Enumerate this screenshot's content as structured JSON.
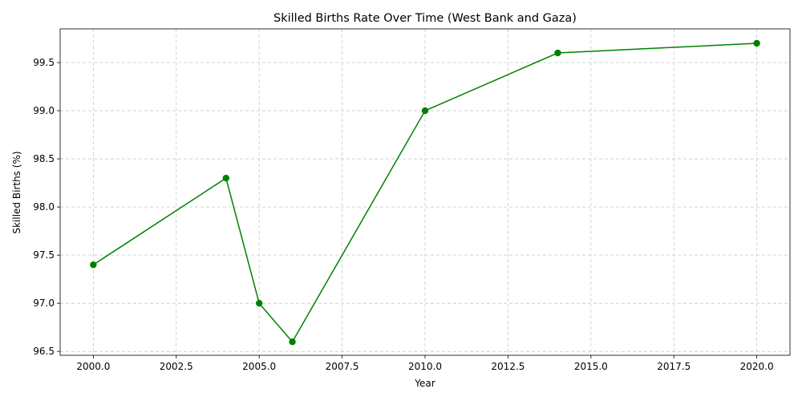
{
  "chart_data": {
    "type": "line",
    "title": "Skilled Births Rate Over Time (West Bank and Gaza)",
    "xlabel": "Year",
    "ylabel": "Skilled Births (%)",
    "xlim": [
      1999.0,
      2021.0
    ],
    "ylim": [
      96.46,
      99.85
    ],
    "xticks": [
      2000.0,
      2002.5,
      2005.0,
      2007.5,
      2010.0,
      2012.5,
      2015.0,
      2017.5,
      2020.0
    ],
    "xtick_labels": [
      "2000.0",
      "2002.5",
      "2005.0",
      "2007.5",
      "2010.0",
      "2012.5",
      "2015.0",
      "2017.5",
      "2020.0"
    ],
    "yticks": [
      96.5,
      97.0,
      97.5,
      98.0,
      98.5,
      99.0,
      99.5
    ],
    "ytick_labels": [
      "96.5",
      "97.0",
      "97.5",
      "98.0",
      "98.5",
      "99.0",
      "99.5"
    ],
    "grid": true,
    "series": [
      {
        "color": "#008000",
        "marker": "circle",
        "x": [
          2000,
          2004,
          2005,
          2006,
          2010,
          2014,
          2020
        ],
        "y": [
          97.4,
          98.3,
          97.0,
          96.6,
          99.0,
          99.6,
          99.7
        ]
      }
    ]
  }
}
